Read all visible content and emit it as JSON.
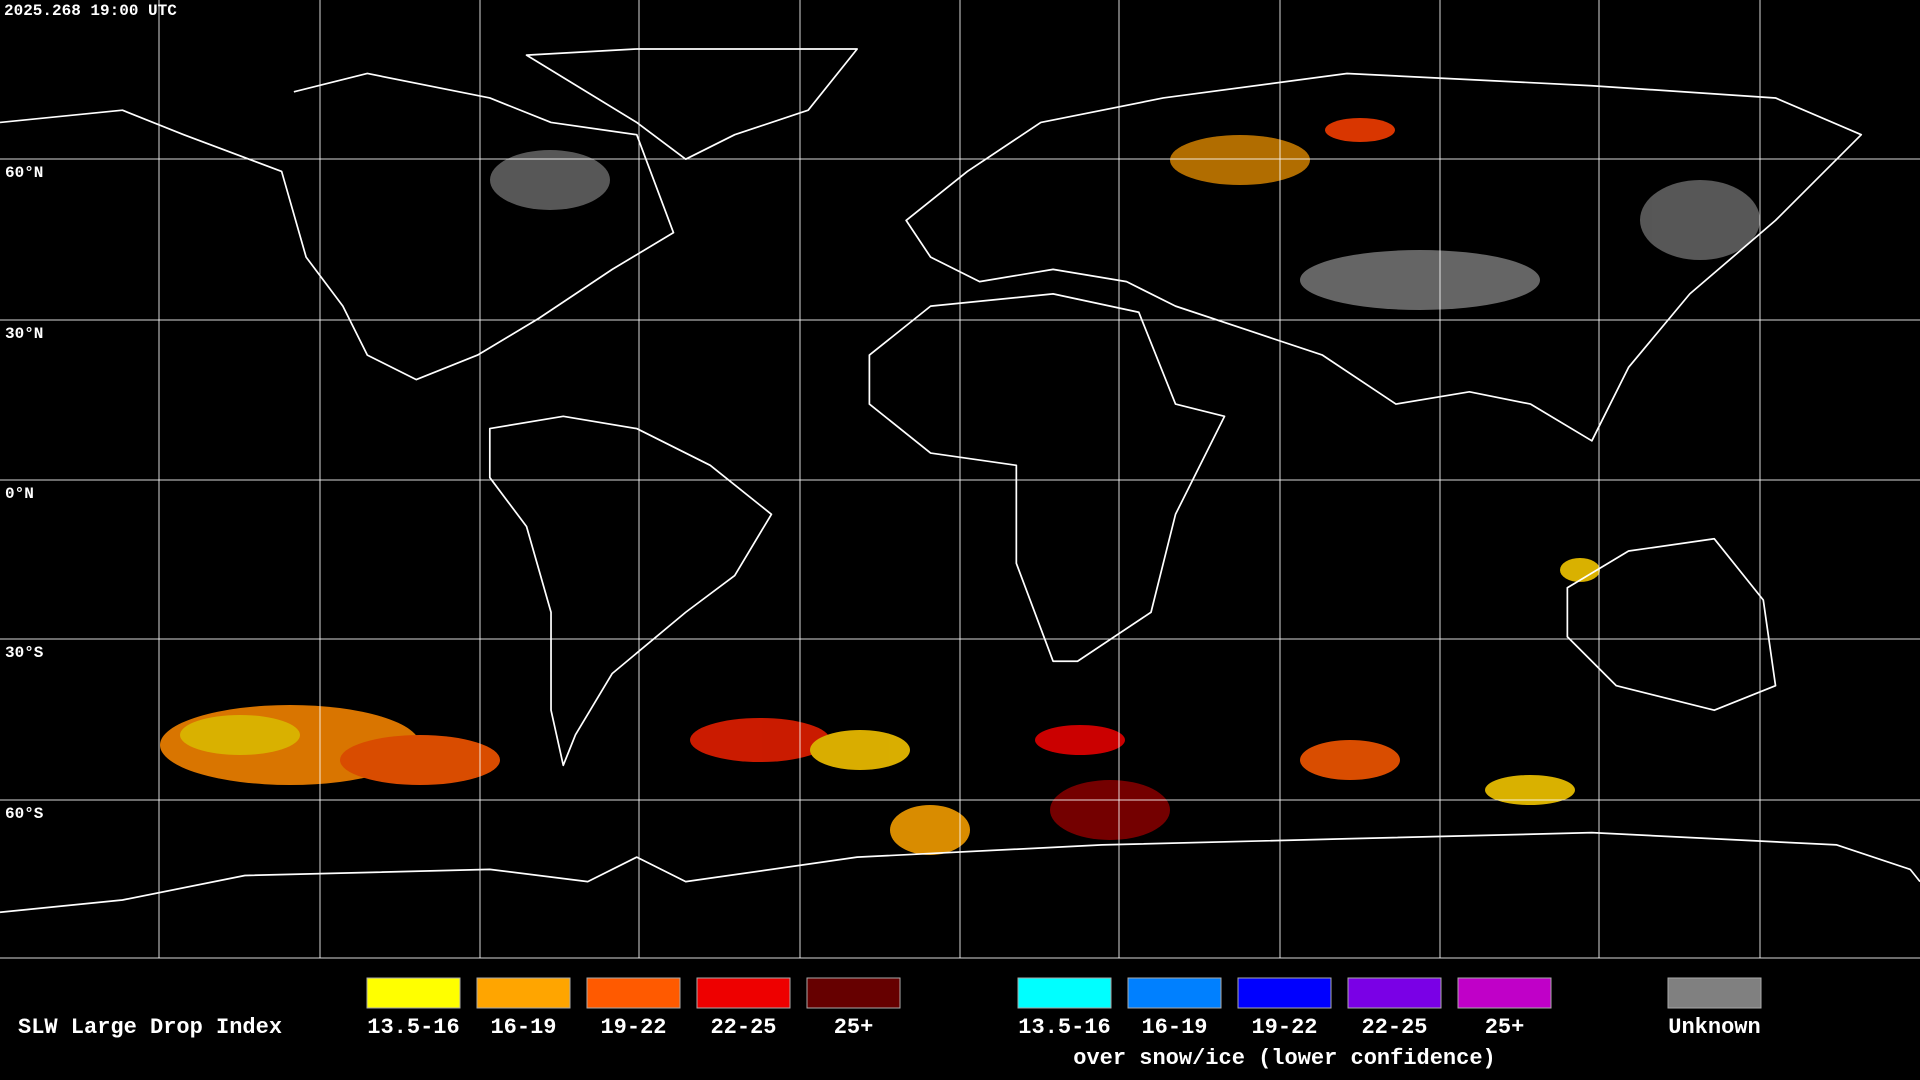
{
  "header": {
    "timestamp": "2025.268 19:00 UTC"
  },
  "map": {
    "latitude_labels": [
      "60°N",
      "30°N",
      "0°N",
      "30°S",
      "60°S"
    ]
  },
  "legend": {
    "title": "SLW Large Drop Index",
    "groups": [
      {
        "items": [
          {
            "label": "13.5-16",
            "color": "#ffff00"
          },
          {
            "label": "16-19",
            "color": "#ffa500"
          },
          {
            "label": "19-22",
            "color": "#ff5a00"
          },
          {
            "label": "22-25",
            "color": "#ee0000"
          },
          {
            "label": "25+",
            "color": "#660000"
          }
        ]
      },
      {
        "caption": "over snow/ice (lower confidence)",
        "items": [
          {
            "label": "13.5-16",
            "color": "#00ffff"
          },
          {
            "label": "16-19",
            "color": "#0080ff"
          },
          {
            "label": "19-22",
            "color": "#0000ff"
          },
          {
            "label": "22-25",
            "color": "#7a00e6"
          },
          {
            "label": "25+",
            "color": "#c000c8"
          }
        ]
      },
      {
        "items": [
          {
            "label": "Unknown",
            "color": "#808080"
          }
        ]
      }
    ]
  }
}
